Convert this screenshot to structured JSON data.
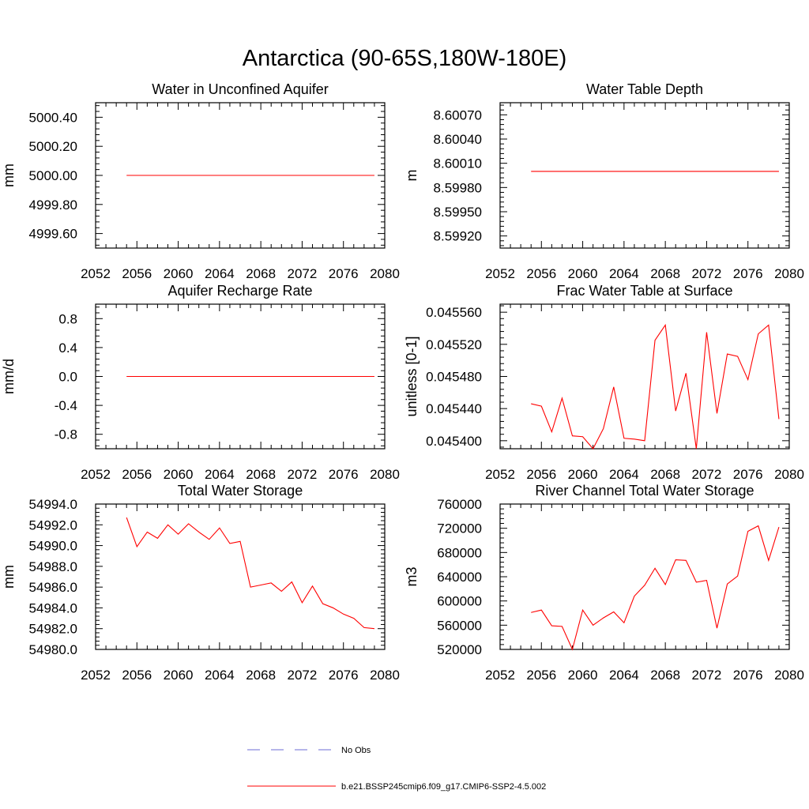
{
  "page_title": "Antarctica (90-65S,180W-180E)",
  "colors": {
    "model": "#ff0000",
    "obs": "#6b6bd6",
    "axis": "#000000"
  },
  "legend": [
    {
      "label": "No Obs",
      "style": "dashed",
      "color": "#6b6bd6"
    },
    {
      "label": "b.e21.BSSP245cmip6.f09_g17.CMIP6-SSP2-4.5.002",
      "style": "solid",
      "color": "#ff0000"
    }
  ],
  "chart_data": [
    {
      "type": "line",
      "title": "Water in Unconfined Aquifer",
      "xlabel": "",
      "ylabel": "mm",
      "xlim": [
        2052,
        2080
      ],
      "ylim": [
        4999.5,
        5000.5
      ],
      "xticks": [
        "2052",
        "2056",
        "2060",
        "2064",
        "2068",
        "2072",
        "2076",
        "2080"
      ],
      "yticks": [
        "4999.60",
        "4999.80",
        "5000.00",
        "5000.20",
        "5000.40"
      ],
      "grid": false,
      "series": [
        {
          "x": [
            2055,
            2056,
            2057,
            2058,
            2059,
            2060,
            2061,
            2062,
            2063,
            2064,
            2065,
            2066,
            2067,
            2068,
            2069,
            2070,
            2071,
            2072,
            2073,
            2074,
            2075,
            2076,
            2077,
            2078,
            2079
          ],
          "y": [
            5000,
            5000,
            5000,
            5000,
            5000,
            5000,
            5000,
            5000,
            5000,
            5000,
            5000,
            5000,
            5000,
            5000,
            5000,
            5000,
            5000,
            5000,
            5000,
            5000,
            5000,
            5000,
            5000,
            5000,
            5000
          ]
        }
      ]
    },
    {
      "type": "line",
      "title": "Water Table Depth",
      "xlabel": "",
      "ylabel": "m",
      "xlim": [
        2052,
        2080
      ],
      "ylim": [
        8.59905,
        8.60085
      ],
      "xticks": [
        "2052",
        "2056",
        "2060",
        "2064",
        "2068",
        "2072",
        "2076",
        "2080"
      ],
      "yticks": [
        "8.59920",
        "8.59950",
        "8.59980",
        "8.60010",
        "8.60040",
        "8.60070"
      ],
      "grid": false,
      "series": [
        {
          "x": [
            2055,
            2056,
            2057,
            2058,
            2059,
            2060,
            2061,
            2062,
            2063,
            2064,
            2065,
            2066,
            2067,
            2068,
            2069,
            2070,
            2071,
            2072,
            2073,
            2074,
            2075,
            2076,
            2077,
            2078,
            2079
          ],
          "y": [
            8.6,
            8.6,
            8.6,
            8.6,
            8.6,
            8.6,
            8.6,
            8.6,
            8.6,
            8.6,
            8.6,
            8.6,
            8.6,
            8.6,
            8.6,
            8.6,
            8.6,
            8.6,
            8.6,
            8.6,
            8.6,
            8.6,
            8.6,
            8.6,
            8.6
          ]
        }
      ]
    },
    {
      "type": "line",
      "title": "Aquifer Recharge Rate",
      "xlabel": "",
      "ylabel": "mm/d",
      "xlim": [
        2052,
        2080
      ],
      "ylim": [
        -1.0,
        1.0
      ],
      "xticks": [
        "2052",
        "2056",
        "2060",
        "2064",
        "2068",
        "2072",
        "2076",
        "2080"
      ],
      "yticks": [
        "-0.8",
        "-0.4",
        "0.0",
        "0.4",
        "0.8"
      ],
      "grid": false,
      "series": [
        {
          "x": [
            2055,
            2056,
            2057,
            2058,
            2059,
            2060,
            2061,
            2062,
            2063,
            2064,
            2065,
            2066,
            2067,
            2068,
            2069,
            2070,
            2071,
            2072,
            2073,
            2074,
            2075,
            2076,
            2077,
            2078,
            2079
          ],
          "y": [
            0,
            0,
            0,
            0,
            0,
            0,
            0,
            0,
            0,
            0,
            0,
            0,
            0,
            0,
            0,
            0,
            0,
            0,
            0,
            0,
            0,
            0,
            0,
            0,
            0
          ]
        }
      ]
    },
    {
      "type": "line",
      "title": "Frac Water Table at Surface",
      "xlabel": "",
      "ylabel": "unitless [0-1]",
      "xlim": [
        2052,
        2080
      ],
      "ylim": [
        0.04539,
        0.04557
      ],
      "xticks": [
        "2052",
        "2056",
        "2060",
        "2064",
        "2068",
        "2072",
        "2076",
        "2080"
      ],
      "yticks": [
        "0.045400",
        "0.045440",
        "0.045480",
        "0.045520",
        "0.045560"
      ],
      "grid": false,
      "series": [
        {
          "x": [
            2055,
            2056,
            2057,
            2058,
            2059,
            2060,
            2061,
            2062,
            2063,
            2064,
            2065,
            2066,
            2067,
            2068,
            2069,
            2070,
            2071,
            2072,
            2073,
            2074,
            2075,
            2076,
            2077,
            2078,
            2079
          ],
          "y": [
            0.045446,
            0.045443,
            0.045411,
            0.045453,
            0.045406,
            0.045405,
            0.04539,
            0.045415,
            0.045467,
            0.045403,
            0.045402,
            0.0454,
            0.045525,
            0.045544,
            0.045437,
            0.045484,
            0.04539,
            0.045535,
            0.045434,
            0.045508,
            0.045505,
            0.045476,
            0.045533,
            0.045544,
            0.045427
          ]
        }
      ]
    },
    {
      "type": "line",
      "title": "Total Water Storage",
      "xlabel": "",
      "ylabel": "mm",
      "xlim": [
        2052,
        2080
      ],
      "ylim": [
        54980.0,
        54994.0
      ],
      "xticks": [
        "2052",
        "2056",
        "2060",
        "2064",
        "2068",
        "2072",
        "2076",
        "2080"
      ],
      "yticks": [
        "54980.0",
        "54982.0",
        "54984.0",
        "54986.0",
        "54988.0",
        "54990.0",
        "54992.0",
        "54994.0"
      ],
      "grid": false,
      "series": [
        {
          "x": [
            2055,
            2056,
            2057,
            2058,
            2059,
            2060,
            2061,
            2062,
            2063,
            2064,
            2065,
            2066,
            2067,
            2068,
            2069,
            2070,
            2071,
            2072,
            2073,
            2074,
            2075,
            2076,
            2077,
            2078,
            2079
          ],
          "y": [
            54992.7,
            54989.9,
            54991.3,
            54990.7,
            54992.0,
            54991.1,
            54992.1,
            54991.3,
            54990.6,
            54991.7,
            54990.2,
            54990.4,
            54986.0,
            54986.2,
            54986.4,
            54985.6,
            54986.5,
            54984.5,
            54986.1,
            54984.4,
            54984.0,
            54983.4,
            54983.0,
            54982.1,
            54982.0
          ]
        }
      ]
    },
    {
      "type": "line",
      "title": "River Channel Total Water Storage",
      "xlabel": "",
      "ylabel": "m3",
      "xlim": [
        2052,
        2080
      ],
      "ylim": [
        520000,
        760000
      ],
      "xticks": [
        "2052",
        "2056",
        "2060",
        "2064",
        "2068",
        "2072",
        "2076",
        "2080"
      ],
      "yticks": [
        "520000",
        "560000",
        "600000",
        "640000",
        "680000",
        "720000",
        "760000"
      ],
      "grid": false,
      "series": [
        {
          "x": [
            2055,
            2056,
            2057,
            2058,
            2059,
            2060,
            2061,
            2062,
            2063,
            2064,
            2065,
            2066,
            2067,
            2068,
            2069,
            2070,
            2071,
            2072,
            2073,
            2074,
            2075,
            2076,
            2077,
            2078,
            2079
          ],
          "y": [
            581000,
            585000,
            559000,
            558000,
            520000,
            585000,
            560000,
            572000,
            582000,
            564000,
            608000,
            626000,
            654000,
            627000,
            668000,
            667000,
            631000,
            634000,
            555000,
            628000,
            641000,
            715000,
            724000,
            667000,
            722000
          ]
        }
      ]
    }
  ]
}
